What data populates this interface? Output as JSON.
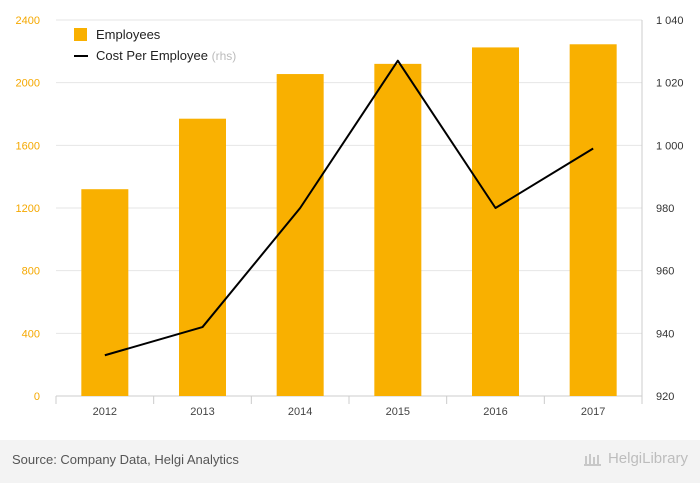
{
  "chart_data": {
    "type": "bar",
    "categories": [
      "2012",
      "2013",
      "2014",
      "2015",
      "2016",
      "2017"
    ],
    "series": [
      {
        "name": "Employees",
        "type": "bar",
        "axis": "left",
        "values": [
          1320,
          1770,
          2055,
          2120,
          2225,
          2245
        ]
      },
      {
        "name": "Cost Per Employee",
        "type": "line",
        "axis": "right",
        "values": [
          933,
          942,
          980,
          1027,
          980,
          999
        ]
      }
    ],
    "y_left": {
      "min": 0,
      "max": 2400,
      "ticks": [
        "0",
        "400",
        "800",
        "1200",
        "1600",
        "2000",
        "2400"
      ]
    },
    "y_right": {
      "min": 920,
      "max": 1040,
      "ticks": [
        "920",
        "940",
        "960",
        "980",
        "1 000",
        "1 020",
        "1 040"
      ]
    },
    "legend": [
      {
        "label": "Employees",
        "suffix": ""
      },
      {
        "label": "Cost Per Employee",
        "suffix": "(rhs)"
      }
    ],
    "legend_position": "top-left",
    "grid": true,
    "colors": {
      "bar": "#f9b000",
      "line": "#000000",
      "left_tick": "#f5a800",
      "right_tick": "#333333",
      "grid": "#e6e6e6"
    }
  },
  "footer": {
    "source": "Source: Company Data, Helgi Analytics",
    "brand": "HelgiLibrary"
  }
}
